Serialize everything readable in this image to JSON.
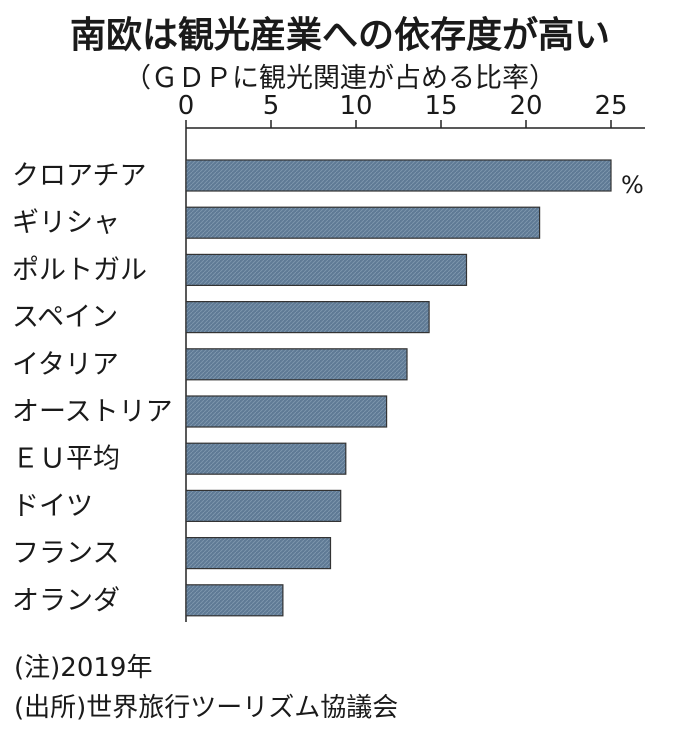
{
  "chart_data": {
    "type": "bar",
    "orientation": "horizontal",
    "title": "南欧は観光産業への依存度が高い",
    "subtitle": "（ＧＤＰに観光関連が占める比率）",
    "unit": "%",
    "categories": [
      "クロアチア",
      "ギリシャ",
      "ポルトガル",
      "スペイン",
      "イタリア",
      "オーストリア",
      "ＥＵ平均",
      "ドイツ",
      "フランス",
      "オランダ"
    ],
    "values": [
      25.0,
      20.8,
      16.5,
      14.3,
      13.0,
      11.8,
      9.4,
      9.1,
      8.5,
      5.7
    ],
    "xticks": [
      0,
      5,
      10,
      15,
      20,
      25
    ],
    "xlim": [
      0,
      27
    ],
    "bar_color": "#5f7a95"
  },
  "notes": {
    "year": "(注)2019年",
    "source": "(出所)世界旅行ツーリズム協議会"
  }
}
